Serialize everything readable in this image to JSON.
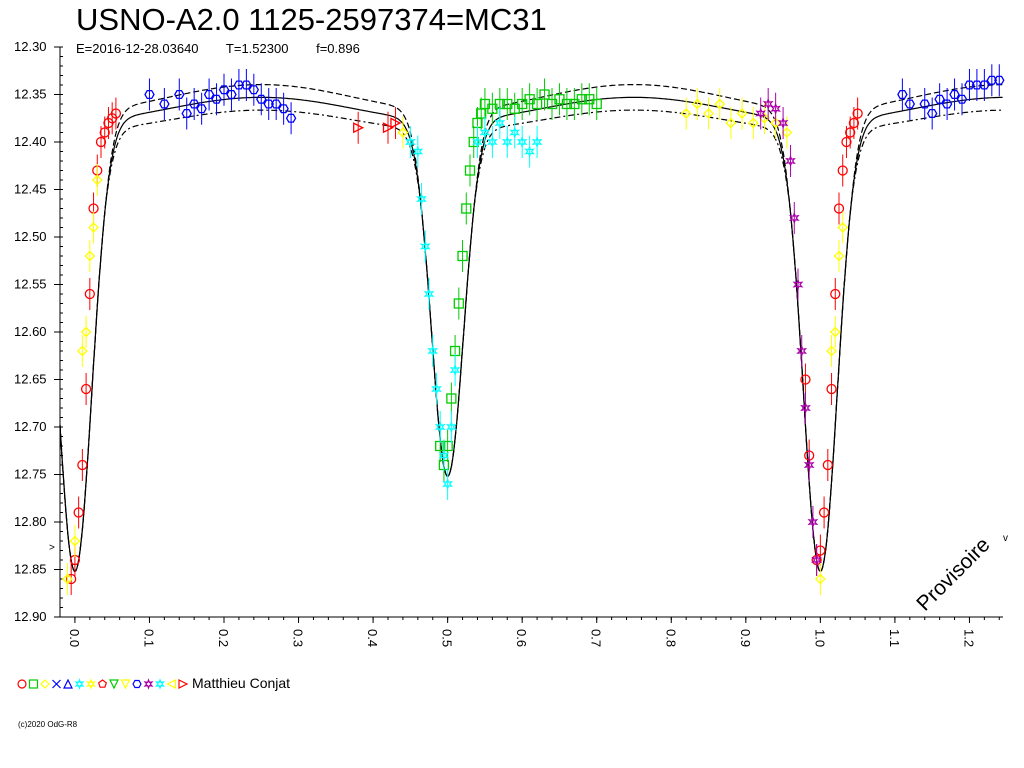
{
  "title": "USNO-A2.0 1125-2597374=MC31",
  "subtitle": {
    "epoch": "E=2016-12-28.03640",
    "period": "T=1.52300",
    "factor": "f=0.896"
  },
  "stamp": "Provisoire",
  "legend": {
    "observer": "Matthieu Conjat",
    "symbols": [
      {
        "shape": "circle",
        "color": "#ff0000"
      },
      {
        "shape": "square",
        "color": "#00cc00"
      },
      {
        "shape": "diamond",
        "color": "#ffff00"
      },
      {
        "shape": "cross",
        "color": "#0000ff"
      },
      {
        "shape": "triangle",
        "color": "#0000ff"
      },
      {
        "shape": "star",
        "color": "#00ffff"
      },
      {
        "shape": "star4",
        "color": "#ffff00"
      },
      {
        "shape": "pentagon",
        "color": "#ff0000"
      },
      {
        "shape": "tri-down",
        "color": "#00cc00"
      },
      {
        "shape": "tri-down",
        "color": "#ffff00"
      },
      {
        "shape": "hexagon",
        "color": "#0000ff"
      },
      {
        "shape": "crossstar",
        "color": "#aa00aa"
      },
      {
        "shape": "star",
        "color": "#00ffff"
      },
      {
        "shape": "tri-left",
        "color": "#ffff00"
      },
      {
        "shape": "tri-right",
        "color": "#ff0000"
      }
    ]
  },
  "copyright": "(c)2020 OdG-R8",
  "chart_data": {
    "type": "scatter",
    "xlim": [
      -0.02,
      1.245
    ],
    "ylim": [
      12.9,
      12.3
    ],
    "y_ticks": [
      "12.30",
      "12.35",
      "12.40",
      "12.45",
      "12.50",
      "12.55",
      "12.60",
      "12.65",
      "12.70",
      "12.75",
      "12.80",
      "12.85",
      "12.90"
    ],
    "x_ticks": [
      "0.0",
      "0.1",
      "0.2",
      "0.3",
      "0.4",
      "0.5",
      "0.6",
      "0.7",
      "0.8",
      "0.9",
      "1.0",
      "1.1",
      "1.2"
    ],
    "model": {
      "max_mag": 12.365,
      "primary_min": {
        "phase": 0.0,
        "depth": 0.475,
        "width": 0.032
      },
      "secondary_min": {
        "phase": 0.5,
        "depth": 0.375,
        "width": 0.03
      },
      "envelope_offset": 0.012
    },
    "series": [
      {
        "marker": "circle",
        "color": "#ff0000",
        "points": [
          [
            -0.005,
            12.86
          ],
          [
            0.0,
            12.84
          ],
          [
            0.005,
            12.79
          ],
          [
            0.01,
            12.74
          ],
          [
            0.015,
            12.66
          ],
          [
            0.02,
            12.56
          ],
          [
            0.025,
            12.47
          ],
          [
            0.03,
            12.43
          ],
          [
            0.035,
            12.4
          ],
          [
            0.04,
            12.39
          ],
          [
            0.045,
            12.38
          ],
          [
            0.05,
            12.375
          ],
          [
            0.055,
            12.37
          ],
          [
            0.995,
            12.84
          ],
          [
            1.0,
            12.83
          ],
          [
            1.005,
            12.79
          ],
          [
            1.01,
            12.74
          ],
          [
            1.015,
            12.66
          ],
          [
            1.02,
            12.56
          ],
          [
            1.025,
            12.47
          ],
          [
            1.03,
            12.43
          ],
          [
            1.035,
            12.4
          ],
          [
            1.04,
            12.39
          ],
          [
            1.045,
            12.38
          ],
          [
            1.05,
            12.37
          ],
          [
            0.985,
            12.73
          ],
          [
            0.98,
            12.65
          ]
        ]
      },
      {
        "marker": "diamond",
        "color": "#ffff00",
        "points": [
          [
            -0.01,
            12.86
          ],
          [
            0.0,
            12.82
          ],
          [
            0.01,
            12.62
          ],
          [
            0.015,
            12.6
          ],
          [
            0.02,
            12.52
          ],
          [
            0.025,
            12.49
          ],
          [
            0.03,
            12.44
          ],
          [
            1.0,
            12.86
          ],
          [
            1.015,
            12.62
          ],
          [
            1.02,
            12.6
          ],
          [
            1.025,
            12.52
          ],
          [
            1.03,
            12.49
          ],
          [
            0.44,
            12.39
          ],
          [
            0.82,
            12.37
          ],
          [
            0.835,
            12.36
          ],
          [
            0.85,
            12.37
          ],
          [
            0.865,
            12.36
          ],
          [
            0.88,
            12.38
          ],
          [
            0.895,
            12.37
          ],
          [
            0.91,
            12.38
          ],
          [
            0.925,
            12.375
          ],
          [
            0.94,
            12.38
          ],
          [
            0.955,
            12.39
          ]
        ]
      },
      {
        "marker": "hexagon",
        "color": "#0000ff",
        "points": [
          [
            0.1,
            12.35
          ],
          [
            0.12,
            12.36
          ],
          [
            0.14,
            12.35
          ],
          [
            0.15,
            12.37
          ],
          [
            0.16,
            12.36
          ],
          [
            0.17,
            12.365
          ],
          [
            0.18,
            12.35
          ],
          [
            0.19,
            12.355
          ],
          [
            0.2,
            12.345
          ],
          [
            0.21,
            12.35
          ],
          [
            0.22,
            12.34
          ],
          [
            0.23,
            12.34
          ],
          [
            0.24,
            12.345
          ],
          [
            0.25,
            12.355
          ],
          [
            0.26,
            12.36
          ],
          [
            0.27,
            12.36
          ],
          [
            0.28,
            12.365
          ],
          [
            0.29,
            12.375
          ],
          [
            1.11,
            12.35
          ],
          [
            1.12,
            12.36
          ],
          [
            1.14,
            12.36
          ],
          [
            1.15,
            12.37
          ],
          [
            1.16,
            12.355
          ],
          [
            1.17,
            12.36
          ],
          [
            1.18,
            12.35
          ],
          [
            1.19,
            12.355
          ],
          [
            1.2,
            12.34
          ],
          [
            1.21,
            12.34
          ],
          [
            1.22,
            12.34
          ],
          [
            1.23,
            12.335
          ],
          [
            1.24,
            12.335
          ]
        ]
      },
      {
        "marker": "square",
        "color": "#00cc00",
        "points": [
          [
            0.49,
            12.72
          ],
          [
            0.495,
            12.74
          ],
          [
            0.5,
            12.72
          ],
          [
            0.505,
            12.67
          ],
          [
            0.51,
            12.62
          ],
          [
            0.515,
            12.57
          ],
          [
            0.52,
            12.52
          ],
          [
            0.525,
            12.47
          ],
          [
            0.53,
            12.43
          ],
          [
            0.535,
            12.4
          ],
          [
            0.54,
            12.38
          ],
          [
            0.545,
            12.37
          ],
          [
            0.55,
            12.36
          ],
          [
            0.56,
            12.365
          ],
          [
            0.57,
            12.36
          ],
          [
            0.58,
            12.36
          ],
          [
            0.59,
            12.365
          ],
          [
            0.6,
            12.36
          ],
          [
            0.61,
            12.355
          ],
          [
            0.62,
            12.36
          ],
          [
            0.63,
            12.35
          ],
          [
            0.64,
            12.36
          ],
          [
            0.65,
            12.355
          ],
          [
            0.66,
            12.36
          ],
          [
            0.67,
            12.36
          ],
          [
            0.68,
            12.355
          ],
          [
            0.69,
            12.355
          ],
          [
            0.7,
            12.36
          ]
        ]
      },
      {
        "marker": "star",
        "color": "#00ffff",
        "points": [
          [
            0.45,
            12.4
          ],
          [
            0.46,
            12.41
          ],
          [
            0.465,
            12.46
          ],
          [
            0.47,
            12.51
          ],
          [
            0.475,
            12.56
          ],
          [
            0.48,
            12.62
          ],
          [
            0.485,
            12.66
          ],
          [
            0.49,
            12.7
          ],
          [
            0.495,
            12.73
          ],
          [
            0.5,
            12.76
          ],
          [
            0.505,
            12.7
          ],
          [
            0.51,
            12.64
          ],
          [
            0.54,
            12.4
          ],
          [
            0.55,
            12.39
          ],
          [
            0.56,
            12.4
          ],
          [
            0.57,
            12.38
          ],
          [
            0.58,
            12.4
          ],
          [
            0.59,
            12.39
          ],
          [
            0.6,
            12.4
          ],
          [
            0.61,
            12.41
          ],
          [
            0.62,
            12.4
          ]
        ]
      },
      {
        "marker": "crossstar",
        "color": "#aa00aa",
        "points": [
          [
            0.92,
            12.37
          ],
          [
            0.93,
            12.36
          ],
          [
            0.94,
            12.365
          ],
          [
            0.95,
            12.38
          ],
          [
            0.96,
            12.42
          ],
          [
            0.965,
            12.48
          ],
          [
            0.97,
            12.55
          ],
          [
            0.975,
            12.62
          ],
          [
            0.98,
            12.68
          ],
          [
            0.985,
            12.74
          ],
          [
            0.99,
            12.8
          ],
          [
            0.995,
            12.84
          ]
        ]
      },
      {
        "marker": "tri-right",
        "color": "#ff0000",
        "points": [
          [
            0.38,
            12.385
          ],
          [
            0.42,
            12.385
          ],
          [
            0.43,
            12.38
          ]
        ]
      }
    ]
  }
}
